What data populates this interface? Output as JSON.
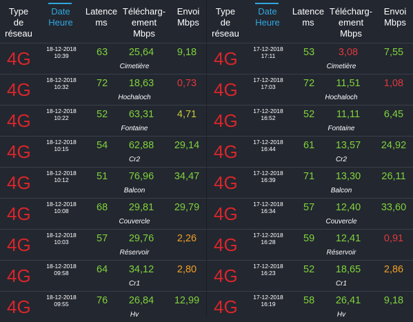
{
  "headers": {
    "type_line1": "Type de",
    "type_line2": "réseau",
    "date_line1": "Date",
    "date_line2": "Heure",
    "latency_line1": "Latence",
    "latency_line2": "ms",
    "download_line1": "Télécharg-",
    "download_line2": "ement",
    "download_line3": "Mbps",
    "upload_line1": "Envoi",
    "upload_line2": "Mbps"
  },
  "colors": {
    "bg": "#232730",
    "accent": "#31a8e0",
    "network": "#d8262b",
    "good": "#7fd33b",
    "fair": "#c6c938",
    "warn": "#f0a025",
    "bad": "#e0393c"
  },
  "left": [
    {
      "net": "4G",
      "date": "18-12-2018",
      "time": "10:39",
      "latency": "63",
      "download": "25,64",
      "upload": "9,18",
      "location": "Cimetière",
      "dl_color": "g",
      "ul_color": "g"
    },
    {
      "net": "4G",
      "date": "18-12-2018",
      "time": "10:32",
      "latency": "72",
      "download": "18,63",
      "upload": "0,73",
      "location": "Hochaloch",
      "dl_color": "g",
      "ul_color": "r"
    },
    {
      "net": "4G",
      "date": "18-12-2018",
      "time": "10:22",
      "latency": "52",
      "download": "63,31",
      "upload": "4,71",
      "location": "Fontaine",
      "dl_color": "g",
      "ul_color": "y"
    },
    {
      "net": "4G",
      "date": "18-12-2018",
      "time": "10:15",
      "latency": "54",
      "download": "62,88",
      "upload": "29,14",
      "location": "Cr2",
      "dl_color": "g",
      "ul_color": "g"
    },
    {
      "net": "4G",
      "date": "18-12-2018",
      "time": "10:12",
      "latency": "51",
      "download": "76,96",
      "upload": "34,47",
      "location": "Balcon",
      "dl_color": "g",
      "ul_color": "g"
    },
    {
      "net": "4G",
      "date": "18-12-2018",
      "time": "10:08",
      "latency": "68",
      "download": "29,81",
      "upload": "29,79",
      "location": "Couvercle",
      "dl_color": "g",
      "ul_color": "g"
    },
    {
      "net": "4G",
      "date": "18-12-2018",
      "time": "10:03",
      "latency": "57",
      "download": "29,76",
      "upload": "2,26",
      "location": "Réservoir",
      "dl_color": "g",
      "ul_color": "o"
    },
    {
      "net": "4G",
      "date": "18-12-2018",
      "time": "09:58",
      "latency": "64",
      "download": "34,12",
      "upload": "2,80",
      "location": "Cr1",
      "dl_color": "g",
      "ul_color": "o"
    },
    {
      "net": "4G",
      "date": "18-12-2018",
      "time": "09:55",
      "latency": "76",
      "download": "26,84",
      "upload": "12,99",
      "location": "Hv",
      "dl_color": "g",
      "ul_color": "g"
    }
  ],
  "right": [
    {
      "net": "4G",
      "date": "17-12-2018",
      "time": "17:11",
      "latency": "53",
      "download": "3,08",
      "upload": "7,55",
      "location": "Cimetière",
      "dl_color": "r",
      "ul_color": "g"
    },
    {
      "net": "4G",
      "date": "17-12-2018",
      "time": "17:03",
      "latency": "72",
      "download": "11,51",
      "upload": "1,08",
      "location": "Hochaloch",
      "dl_color": "g",
      "ul_color": "r"
    },
    {
      "net": "4G",
      "date": "17-12-2018",
      "time": "16:52",
      "latency": "52",
      "download": "11,11",
      "upload": "6,45",
      "location": "Fontaine",
      "dl_color": "g",
      "ul_color": "g"
    },
    {
      "net": "4G",
      "date": "17-12-2018",
      "time": "16:44",
      "latency": "61",
      "download": "13,57",
      "upload": "24,92",
      "location": "Cr2",
      "dl_color": "g",
      "ul_color": "g"
    },
    {
      "net": "4G",
      "date": "17-12-2018",
      "time": "16:39",
      "latency": "71",
      "download": "13,30",
      "upload": "26,11",
      "location": "Balcon",
      "dl_color": "g",
      "ul_color": "g"
    },
    {
      "net": "4G",
      "date": "17-12-2018",
      "time": "16:34",
      "latency": "57",
      "download": "12,40",
      "upload": "33,60",
      "location": "Couvercle",
      "dl_color": "g",
      "ul_color": "g"
    },
    {
      "net": "4G",
      "date": "17-12-2018",
      "time": "16:28",
      "latency": "59",
      "download": "12,41",
      "upload": "0,91",
      "location": "Réservoir",
      "dl_color": "g",
      "ul_color": "r"
    },
    {
      "net": "4G",
      "date": "17-12-2018",
      "time": "16:23",
      "latency": "52",
      "download": "18,65",
      "upload": "2,86",
      "location": "Cr1",
      "dl_color": "g",
      "ul_color": "o"
    },
    {
      "net": "4G",
      "date": "17-12-2018",
      "time": "16:19",
      "latency": "58",
      "download": "26,41",
      "upload": "9,18",
      "location": "Hv",
      "dl_color": "g",
      "ul_color": "g"
    }
  ]
}
